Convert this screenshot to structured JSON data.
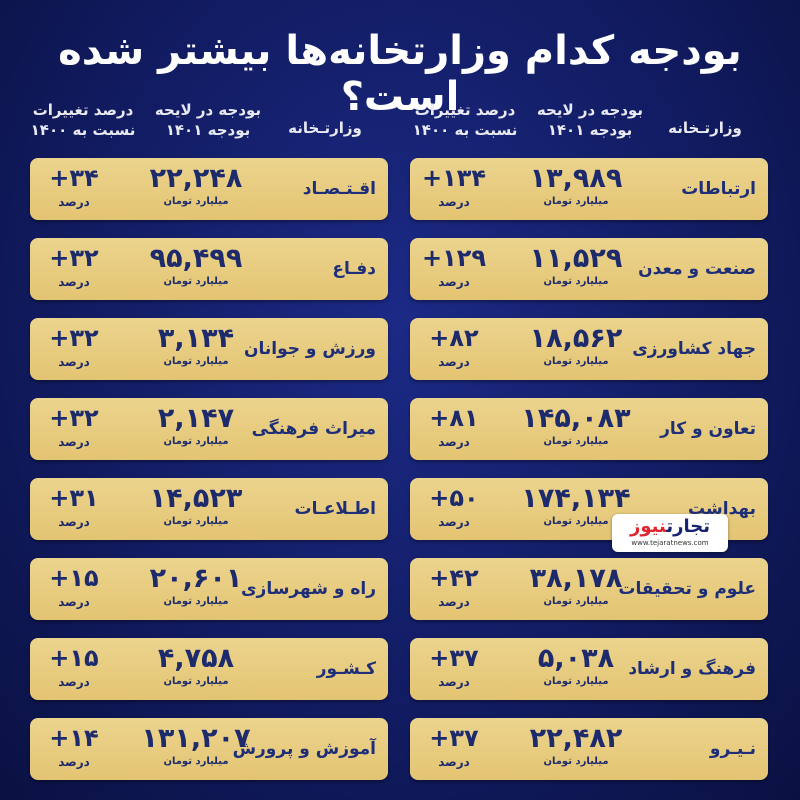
{
  "title": "بودجه کدام وزارتخانه‌ها بیشتر شده است؟",
  "headers": {
    "ministry": "وزارتـخانه",
    "budget": "بودجه در لایحه بودجه ۱۴۰۱",
    "change": "درصد تغییرات نسبت به ۱۴۰۰"
  },
  "units": {
    "budget": "میلیارد تومان",
    "change": "درصد"
  },
  "logo": {
    "part1": "تجارت",
    "part2": "نیوز",
    "url": "www.tejaratnews.com"
  },
  "right_column": [
    {
      "name": "ارتباطات",
      "budget": "۱۳,۹۸۹",
      "change": "+۱۳۴"
    },
    {
      "name": "صنعت و معدن",
      "budget": "۱۱,۵۲۹",
      "change": "+۱۲۹"
    },
    {
      "name": "جهاد کشاورزی",
      "budget": "۱۸,۵۶۲",
      "change": "+۸۲"
    },
    {
      "name": "تعاون و کار",
      "budget": "۱۴۵,۰۸۳",
      "change": "+۸۱"
    },
    {
      "name": "بهداشت",
      "budget": "۱۷۴,۱۳۴",
      "change": "+۵۰"
    },
    {
      "name": "علوم و تحقیقات",
      "budget": "۳۸,۱۷۸",
      "change": "+۴۲"
    },
    {
      "name": "فرهنگ و ارشاد",
      "budget": "۵,۰۳۸",
      "change": "+۳۷"
    },
    {
      "name": "نـیـرو",
      "budget": "۲۲,۴۸۲",
      "change": "+۳۷"
    }
  ],
  "left_column": [
    {
      "name": "اقـتـصـاد",
      "budget": "۲۲,۲۴۸",
      "change": "+۳۴"
    },
    {
      "name": "دفـاع",
      "budget": "۹۵,۴۹۹",
      "change": "+۳۲"
    },
    {
      "name": "ورزش و جوانان",
      "budget": "۳,۱۳۴",
      "change": "+۳۲"
    },
    {
      "name": "میراث فرهنگی",
      "budget": "۲,۱۴۷",
      "change": "+۳۲"
    },
    {
      "name": "اطـلاعـات",
      "budget": "۱۴,۵۲۳",
      "change": "+۳۱"
    },
    {
      "name": "راه و شهرسازی",
      "budget": "۲۰,۶۰۱",
      "change": "+۱۵"
    },
    {
      "name": "کـشـور",
      "budget": "۴,۷۵۸",
      "change": "+۱۵"
    },
    {
      "name": "آموزش و پرورش",
      "budget": "۱۳۱,۲۰۷",
      "change": "+۱۴"
    }
  ]
}
